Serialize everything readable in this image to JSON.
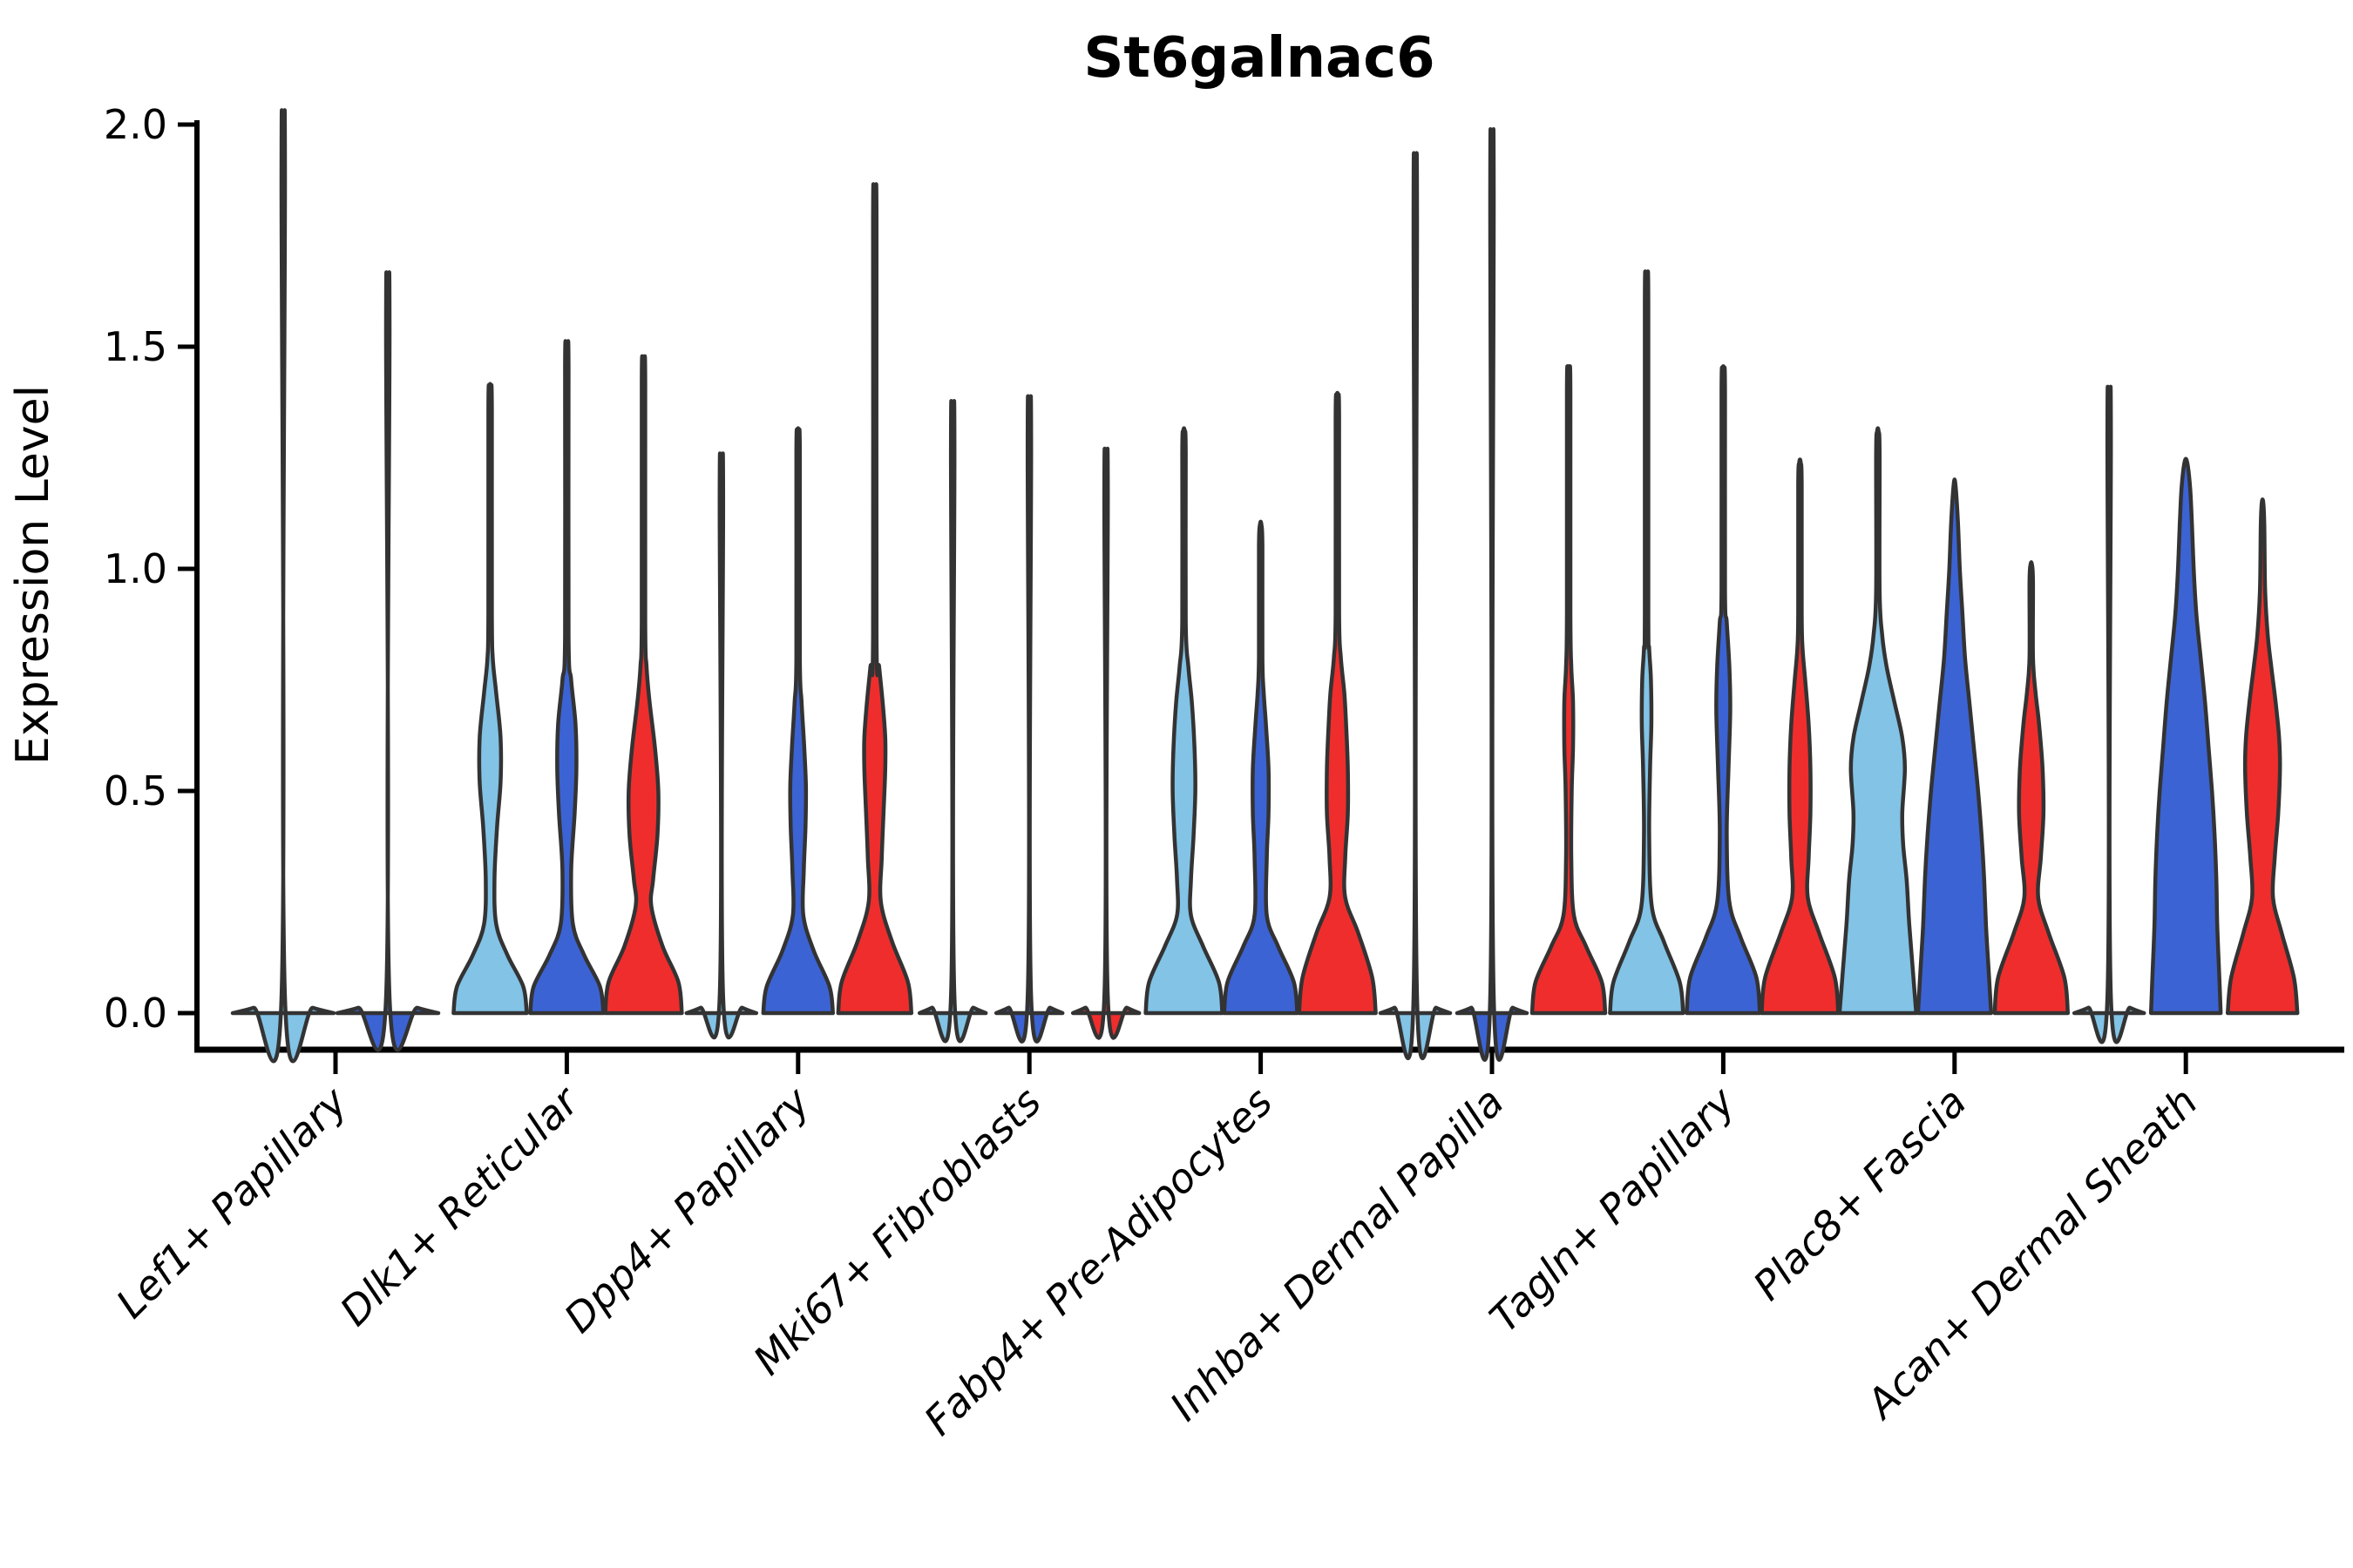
{
  "title": "St6galnac6",
  "ylabel": "Expression Level",
  "axis": {
    "ytick_labels": [
      "0.0",
      "0.5",
      "1.0",
      "1.5",
      "2.0"
    ]
  },
  "chart_data": {
    "type": "violin",
    "title": "St6galnac6",
    "xlabel": "",
    "ylabel": "Expression Level",
    "ylim": [
      0,
      2.05
    ],
    "yticks": [
      0.0,
      0.5,
      1.0,
      1.5,
      2.0
    ],
    "grid": false,
    "legend": null,
    "background": "#ffffff",
    "outline_color": "#333333",
    "categories": [
      "Lef1+ Papillary",
      "Dlk1+ Reticular",
      "Dpp4+ Papillary",
      "Mki67+ Fibroblasts",
      "Fabp4+ Pre-Adipocytes",
      "Inhba+ Dermal Papilla",
      "Tagln+ Papillary",
      "Plac8+ Fascia",
      "Acan+ Dermal Sheath"
    ],
    "series": [
      {
        "name": "light-blue",
        "color": "#82C3E6"
      },
      {
        "name": "blue",
        "color": "#3C63D3"
      },
      {
        "name": "red",
        "color": "#EF2D2D"
      }
    ],
    "violins": [
      {
        "category": 0,
        "series": 0,
        "offset": -60,
        "max": 1.93,
        "profile": [
          [
            0,
            58
          ],
          [
            0.012,
            34
          ],
          [
            0.035,
            2
          ],
          [
            1.88,
            2
          ],
          [
            1.93,
            0.8
          ]
        ]
      },
      {
        "category": 0,
        "series": 1,
        "offset": 60,
        "max": 1.59,
        "profile": [
          [
            0,
            58
          ],
          [
            0.012,
            34
          ],
          [
            0.035,
            2
          ],
          [
            1.54,
            2
          ],
          [
            1.59,
            0.8
          ]
        ]
      },
      {
        "category": 1,
        "series": 0,
        "offset": -88,
        "max": 1.41,
        "profile": [
          [
            0,
            42
          ],
          [
            0.06,
            38
          ],
          [
            0.13,
            20
          ],
          [
            0.2,
            7
          ],
          [
            0.3,
            5
          ],
          [
            0.42,
            8
          ],
          [
            0.52,
            12
          ],
          [
            0.62,
            12
          ],
          [
            0.72,
            7
          ],
          [
            0.8,
            3
          ],
          [
            0.9,
            2
          ],
          [
            1.36,
            2
          ],
          [
            1.41,
            0.8
          ]
        ]
      },
      {
        "category": 1,
        "series": 1,
        "offset": 0,
        "max": 1.5,
        "profile": [
          [
            0,
            42
          ],
          [
            0.06,
            38
          ],
          [
            0.13,
            20
          ],
          [
            0.2,
            7
          ],
          [
            0.32,
            5
          ],
          [
            0.45,
            9
          ],
          [
            0.55,
            11
          ],
          [
            0.65,
            10
          ],
          [
            0.75,
            5
          ],
          [
            0.85,
            2
          ],
          [
            1.45,
            2
          ],
          [
            1.5,
            0.8
          ]
        ]
      },
      {
        "category": 1,
        "series": 2,
        "offset": 88,
        "max": 1.47,
        "profile": [
          [
            0,
            44
          ],
          [
            0.07,
            40
          ],
          [
            0.15,
            22
          ],
          [
            0.24,
            9
          ],
          [
            0.3,
            11
          ],
          [
            0.4,
            16
          ],
          [
            0.5,
            17
          ],
          [
            0.6,
            13
          ],
          [
            0.7,
            7
          ],
          [
            0.78,
            3.5
          ],
          [
            0.88,
            2
          ],
          [
            1.42,
            2
          ],
          [
            1.47,
            0.8
          ]
        ]
      },
      {
        "category": 2,
        "series": 0,
        "offset": -88,
        "max": 1.21,
        "profile": [
          [
            0,
            40
          ],
          [
            0.012,
            24
          ],
          [
            0.035,
            2
          ],
          [
            1.16,
            2
          ],
          [
            1.21,
            0.8
          ]
        ]
      },
      {
        "category": 2,
        "series": 1,
        "offset": 0,
        "max": 1.31,
        "profile": [
          [
            0,
            40
          ],
          [
            0.06,
            36
          ],
          [
            0.14,
            18
          ],
          [
            0.22,
            6
          ],
          [
            0.32,
            6.5
          ],
          [
            0.42,
            8.5
          ],
          [
            0.51,
            9
          ],
          [
            0.6,
            7
          ],
          [
            0.7,
            4
          ],
          [
            0.8,
            2
          ],
          [
            1.26,
            2
          ],
          [
            1.31,
            0.8
          ]
        ]
      },
      {
        "category": 2,
        "series": 2,
        "offset": 88,
        "max": 1.83,
        "profile": [
          [
            0,
            42
          ],
          [
            0.07,
            38
          ],
          [
            0.16,
            20
          ],
          [
            0.25,
            7
          ],
          [
            0.35,
            8
          ],
          [
            0.45,
            10
          ],
          [
            0.55,
            12
          ],
          [
            0.62,
            12
          ],
          [
            0.7,
            9
          ],
          [
            0.78,
            5
          ],
          [
            0.85,
            2
          ],
          [
            1.78,
            2
          ],
          [
            1.83,
            0.8
          ]
        ]
      },
      {
        "category": 3,
        "series": 0,
        "offset": -88,
        "max": 1.32,
        "profile": [
          [
            0,
            38
          ],
          [
            0.012,
            24
          ],
          [
            0.035,
            2
          ],
          [
            1.27,
            2
          ],
          [
            1.32,
            0.8
          ]
        ]
      },
      {
        "category": 3,
        "series": 1,
        "offset": 0,
        "max": 1.33,
        "profile": [
          [
            0,
            38
          ],
          [
            0.012,
            24
          ],
          [
            0.035,
            2
          ],
          [
            1.28,
            2
          ],
          [
            1.33,
            0.8
          ]
        ]
      },
      {
        "category": 3,
        "series": 2,
        "offset": 88,
        "max": 1.22,
        "profile": [
          [
            0,
            38
          ],
          [
            0.012,
            24
          ],
          [
            0.035,
            2
          ],
          [
            1.17,
            2
          ],
          [
            1.22,
            0.8
          ]
        ]
      },
      {
        "category": 4,
        "series": 0,
        "offset": -88,
        "max": 1.31,
        "profile": [
          [
            0,
            44
          ],
          [
            0.07,
            40
          ],
          [
            0.15,
            22
          ],
          [
            0.22,
            8
          ],
          [
            0.3,
            8
          ],
          [
            0.4,
            11
          ],
          [
            0.5,
            13
          ],
          [
            0.6,
            12
          ],
          [
            0.7,
            9
          ],
          [
            0.78,
            5
          ],
          [
            0.88,
            2
          ],
          [
            1.26,
            2
          ],
          [
            1.31,
            0.8
          ]
        ]
      },
      {
        "category": 4,
        "series": 1,
        "offset": 0,
        "max": 1.1,
        "profile": [
          [
            0,
            42
          ],
          [
            0.07,
            38
          ],
          [
            0.15,
            20
          ],
          [
            0.22,
            7
          ],
          [
            0.35,
            7
          ],
          [
            0.45,
            9
          ],
          [
            0.55,
            9
          ],
          [
            0.65,
            6
          ],
          [
            0.72,
            3.5
          ],
          [
            0.8,
            2
          ],
          [
            1.05,
            2
          ],
          [
            1.1,
            0.8
          ]
        ]
      },
      {
        "category": 4,
        "series": 2,
        "offset": 88,
        "max": 1.39,
        "profile": [
          [
            0,
            44
          ],
          [
            0.08,
            40
          ],
          [
            0.18,
            24
          ],
          [
            0.26,
            9
          ],
          [
            0.35,
            9
          ],
          [
            0.45,
            12
          ],
          [
            0.55,
            12
          ],
          [
            0.65,
            10
          ],
          [
            0.72,
            8
          ],
          [
            0.8,
            4
          ],
          [
            0.9,
            2
          ],
          [
            1.34,
            2
          ],
          [
            1.39,
            0.8
          ]
        ]
      },
      {
        "category": 5,
        "series": 0,
        "offset": -88,
        "max": 1.84,
        "profile": [
          [
            0,
            40
          ],
          [
            0.012,
            24
          ],
          [
            0.035,
            2
          ],
          [
            1.79,
            2
          ],
          [
            1.84,
            0.8
          ]
        ]
      },
      {
        "category": 5,
        "series": 1,
        "offset": 0,
        "max": 1.89,
        "profile": [
          [
            0,
            40
          ],
          [
            0.012,
            24
          ],
          [
            0.035,
            2
          ],
          [
            1.84,
            2
          ],
          [
            1.89,
            0.8
          ]
        ]
      },
      {
        "category": 5,
        "series": 2,
        "offset": 88,
        "max": 1.45,
        "profile": [
          [
            0,
            42
          ],
          [
            0.07,
            38
          ],
          [
            0.15,
            20
          ],
          [
            0.22,
            6
          ],
          [
            0.35,
            3
          ],
          [
            0.5,
            3.5
          ],
          [
            0.6,
            5
          ],
          [
            0.7,
            5
          ],
          [
            0.78,
            3
          ],
          [
            0.9,
            2
          ],
          [
            1.4,
            2
          ],
          [
            1.45,
            0.8
          ]
        ]
      },
      {
        "category": 6,
        "series": 0,
        "offset": -88,
        "max": 1.65,
        "profile": [
          [
            0,
            42
          ],
          [
            0.07,
            38
          ],
          [
            0.16,
            20
          ],
          [
            0.24,
            6
          ],
          [
            0.4,
            3
          ],
          [
            0.55,
            4
          ],
          [
            0.65,
            5.5
          ],
          [
            0.75,
            5
          ],
          [
            0.82,
            3
          ],
          [
            0.9,
            2
          ],
          [
            1.6,
            2
          ],
          [
            1.65,
            0.8
          ]
        ]
      },
      {
        "category": 6,
        "series": 1,
        "offset": 0,
        "max": 1.45,
        "profile": [
          [
            0,
            42
          ],
          [
            0.08,
            38
          ],
          [
            0.17,
            20
          ],
          [
            0.25,
            7
          ],
          [
            0.4,
            4
          ],
          [
            0.55,
            6
          ],
          [
            0.68,
            8
          ],
          [
            0.78,
            7
          ],
          [
            0.88,
            4
          ],
          [
            0.95,
            2
          ],
          [
            1.4,
            2
          ],
          [
            1.45,
            0.8
          ]
        ]
      },
      {
        "category": 6,
        "series": 2,
        "offset": 88,
        "max": 1.24,
        "profile": [
          [
            0,
            44
          ],
          [
            0.08,
            40
          ],
          [
            0.18,
            22
          ],
          [
            0.26,
            9
          ],
          [
            0.35,
            10
          ],
          [
            0.45,
            12
          ],
          [
            0.55,
            12
          ],
          [
            0.65,
            10
          ],
          [
            0.75,
            6
          ],
          [
            0.82,
            3
          ],
          [
            0.9,
            2
          ],
          [
            1.19,
            2
          ],
          [
            1.24,
            0.8
          ]
        ]
      },
      {
        "category": 7,
        "series": 0,
        "offset": -88,
        "max": 1.31,
        "profile": [
          [
            0,
            44
          ],
          [
            0.1,
            40
          ],
          [
            0.2,
            36
          ],
          [
            0.3,
            33
          ],
          [
            0.38,
            29
          ],
          [
            0.45,
            28
          ],
          [
            0.55,
            31
          ],
          [
            0.62,
            28
          ],
          [
            0.7,
            19
          ],
          [
            0.78,
            10
          ],
          [
            0.85,
            5
          ],
          [
            0.95,
            2
          ],
          [
            1.26,
            2
          ],
          [
            1.31,
            0.8
          ]
        ]
      },
      {
        "category": 7,
        "series": 1,
        "offset": 0,
        "max": 1.19,
        "profile": [
          [
            0,
            42
          ],
          [
            0.1,
            39
          ],
          [
            0.2,
            36
          ],
          [
            0.3,
            34
          ],
          [
            0.4,
            31
          ],
          [
            0.5,
            27
          ],
          [
            0.6,
            22
          ],
          [
            0.7,
            17
          ],
          [
            0.8,
            12
          ],
          [
            0.9,
            9
          ],
          [
            1.0,
            6
          ],
          [
            1.1,
            4
          ],
          [
            1.19,
            1
          ]
        ]
      },
      {
        "category": 7,
        "series": 2,
        "offset": 88,
        "max": 1.01,
        "profile": [
          [
            0,
            42
          ],
          [
            0.08,
            38
          ],
          [
            0.18,
            20
          ],
          [
            0.26,
            8
          ],
          [
            0.35,
            11
          ],
          [
            0.45,
            14
          ],
          [
            0.55,
            13
          ],
          [
            0.65,
            9
          ],
          [
            0.72,
            5
          ],
          [
            0.8,
            2
          ],
          [
            0.97,
            2
          ],
          [
            1.01,
            0.8
          ]
        ]
      },
      {
        "category": 8,
        "series": 0,
        "offset": -88,
        "max": 1.35,
        "profile": [
          [
            0,
            40
          ],
          [
            0.012,
            24
          ],
          [
            0.035,
            2
          ],
          [
            1.3,
            2
          ],
          [
            1.35,
            0.8
          ]
        ]
      },
      {
        "category": 8,
        "series": 1,
        "offset": 0,
        "max": 1.24,
        "profile": [
          [
            0,
            40
          ],
          [
            0.1,
            38
          ],
          [
            0.2,
            36
          ],
          [
            0.3,
            35
          ],
          [
            0.4,
            33
          ],
          [
            0.5,
            30
          ],
          [
            0.6,
            26
          ],
          [
            0.7,
            22
          ],
          [
            0.8,
            17
          ],
          [
            0.9,
            12
          ],
          [
            1.0,
            9
          ],
          [
            1.1,
            7
          ],
          [
            1.18,
            5
          ],
          [
            1.24,
            1.5
          ]
        ]
      },
      {
        "category": 8,
        "series": 2,
        "offset": 88,
        "max": 1.15,
        "profile": [
          [
            0,
            40
          ],
          [
            0.08,
            36
          ],
          [
            0.18,
            22
          ],
          [
            0.26,
            12
          ],
          [
            0.35,
            14
          ],
          [
            0.45,
            18
          ],
          [
            0.55,
            20
          ],
          [
            0.62,
            19
          ],
          [
            0.7,
            15
          ],
          [
            0.78,
            10
          ],
          [
            0.85,
            6
          ],
          [
            0.95,
            3
          ],
          [
            1.1,
            2
          ],
          [
            1.15,
            0.8
          ]
        ]
      }
    ]
  }
}
